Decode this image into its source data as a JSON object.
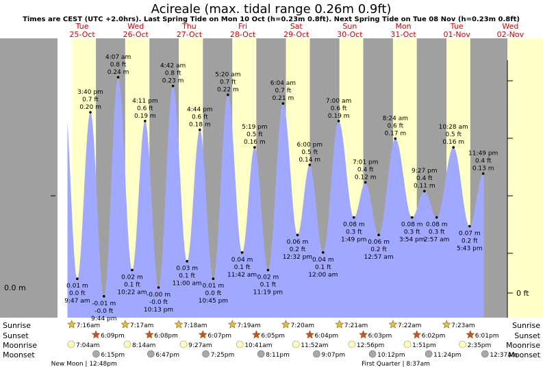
{
  "header": {
    "title": "Acireale (max. tidal range 0.26m 0.9ft)",
    "subtitle": "Times are CEST (UTC +2.0hrs). Last Spring Tide on Mon 10 Oct (h=0.23m 0.8ft). Next Spring Tide on Tue 08 Nov (h=0.23m 0.8ft)"
  },
  "axes": {
    "left_label": "0.0 m",
    "right_label": "0 ft"
  },
  "rows": {
    "sunrise": "Sunrise",
    "sunset": "Sunset",
    "moonrise": "Moonrise",
    "moonset": "Moonset"
  },
  "colors": {
    "night": "#a0a0a0",
    "day": "#ffffc8",
    "tide_fill": "#a0a8ff",
    "day_label": "#d00000",
    "sun_star": "#e0c040",
    "sunset_star": "#d05020",
    "moonrise_circle": "#ffffc0",
    "moonset_circle": "#a8a8a8"
  },
  "chart_data": {
    "type": "area",
    "title": "Acireale (max. tidal range 0.26m 0.9ft)",
    "x_range": [
      "2022-10-25 00:00",
      "2022-11-02 00:00"
    ],
    "y_unit": "m",
    "days": [
      {
        "dow": "Tue",
        "date": "25-Oct"
      },
      {
        "dow": "Wed",
        "date": "26-Oct"
      },
      {
        "dow": "Thu",
        "date": "27-Oct"
      },
      {
        "dow": "Fri",
        "date": "28-Oct"
      },
      {
        "dow": "Sat",
        "date": "29-Oct"
      },
      {
        "dow": "Sun",
        "date": "30-Oct"
      },
      {
        "dow": "Mon",
        "date": "31-Oct"
      },
      {
        "dow": "Tue",
        "date": "01-Nov"
      },
      {
        "dow": "Wed",
        "date": "02-Nov"
      }
    ],
    "tides": [
      {
        "day": 0,
        "time": "3:40 pm",
        "h_m": "0.20 m",
        "h_ft": "0.7 ft",
        "type": "high",
        "hours": 15.67,
        "m": 0.2
      },
      {
        "day": 0,
        "time": "9:47 am",
        "h_m": "0.01 m",
        "h_ft": "0.0 ft",
        "type": "low",
        "hours": 9.78,
        "m": 0.01
      },
      {
        "day": 0,
        "time": "9:44 pm",
        "h_m": "-0.01 m",
        "h_ft": "-0.0 ft",
        "type": "low",
        "hours": 21.73,
        "m": -0.01
      },
      {
        "day": 1,
        "time": "4:07 am",
        "h_m": "0.24 m",
        "h_ft": "0.8 ft",
        "type": "high",
        "hours": 4.12,
        "m": 0.24
      },
      {
        "day": 1,
        "time": "4:11 pm",
        "h_m": "0.19 m",
        "h_ft": "0.6 ft",
        "type": "high",
        "hours": 16.18,
        "m": 0.19
      },
      {
        "day": 1,
        "time": "10:22 am",
        "h_m": "0.02 m",
        "h_ft": "0.1 ft",
        "type": "low",
        "hours": 10.37,
        "m": 0.02
      },
      {
        "day": 1,
        "time": "10:13 pm",
        "h_m": "-0.00 m",
        "h_ft": "-0.0 ft",
        "type": "low",
        "hours": 22.22,
        "m": 0.0
      },
      {
        "day": 2,
        "time": "4:42 am",
        "h_m": "0.23 m",
        "h_ft": "0.8 ft",
        "type": "high",
        "hours": 4.7,
        "m": 0.23
      },
      {
        "day": 2,
        "time": "4:44 pm",
        "h_m": "0.18 m",
        "h_ft": "0.6 ft",
        "type": "high",
        "hours": 16.73,
        "m": 0.18
      },
      {
        "day": 2,
        "time": "11:00 am",
        "h_m": "0.03 m",
        "h_ft": "0.1 ft",
        "type": "low",
        "hours": 11.0,
        "m": 0.03
      },
      {
        "day": 2,
        "time": "10:45 pm",
        "h_m": "0.01 m",
        "h_ft": "0.0 ft",
        "type": "low",
        "hours": 22.75,
        "m": 0.01
      },
      {
        "day": 3,
        "time": "5:20 am",
        "h_m": "0.22 m",
        "h_ft": "0.7 ft",
        "type": "high",
        "hours": 5.33,
        "m": 0.22
      },
      {
        "day": 3,
        "time": "5:19 pm",
        "h_m": "0.16 m",
        "h_ft": "0.5 ft",
        "type": "high",
        "hours": 17.32,
        "m": 0.16
      },
      {
        "day": 3,
        "time": "11:42 am",
        "h_m": "0.04 m",
        "h_ft": "0.1 ft",
        "type": "low",
        "hours": 11.7,
        "m": 0.04
      },
      {
        "day": 3,
        "time": "11:19 pm",
        "h_m": "0.02 m",
        "h_ft": "0.1 ft",
        "type": "low",
        "hours": 23.32,
        "m": 0.02
      },
      {
        "day": 4,
        "time": "6:04 am",
        "h_m": "0.21 m",
        "h_ft": "0.7 ft",
        "type": "high",
        "hours": 6.07,
        "m": 0.21
      },
      {
        "day": 4,
        "time": "6:00 pm",
        "h_m": "0.14 m",
        "h_ft": "0.5 ft",
        "type": "high",
        "hours": 18.0,
        "m": 0.14
      },
      {
        "day": 4,
        "time": "12:32 pm",
        "h_m": "0.06 m",
        "h_ft": "0.2 ft",
        "type": "low",
        "hours": 12.53,
        "m": 0.06
      },
      {
        "day": 5,
        "time": "12:00 am",
        "h_m": "0.04 m",
        "h_ft": "0.1 ft",
        "type": "low",
        "hours": 0.0,
        "m": 0.04
      },
      {
        "day": 5,
        "time": "7:00 am",
        "h_m": "0.19 m",
        "h_ft": "0.6 ft",
        "type": "high",
        "hours": 7.0,
        "m": 0.19
      },
      {
        "day": 5,
        "time": "7:01 pm",
        "h_m": "0.12 m",
        "h_ft": "0.4 ft",
        "type": "high",
        "hours": 19.02,
        "m": 0.12
      },
      {
        "day": 5,
        "time": "1:49 pm",
        "h_m": "0.08 m",
        "h_ft": "0.3 ft",
        "type": "low",
        "hours": 13.82,
        "m": 0.08
      },
      {
        "day": 6,
        "time": "12:57 am",
        "h_m": "0.06 m",
        "h_ft": "0.2 ft",
        "type": "low",
        "hours": 0.95,
        "m": 0.06
      },
      {
        "day": 6,
        "time": "8:24 am",
        "h_m": "0.17 m",
        "h_ft": "0.6 ft",
        "type": "high",
        "hours": 8.4,
        "m": 0.17
      },
      {
        "day": 6,
        "time": "3:54 pm",
        "h_m": "0.08 m",
        "h_ft": "0.3 ft",
        "type": "low",
        "hours": 15.9,
        "m": 0.08
      },
      {
        "day": 6,
        "time": "9:27 pm",
        "h_m": "0.11 m",
        "h_ft": "0.4 ft",
        "type": "high",
        "hours": 21.45,
        "m": 0.11
      },
      {
        "day": 7,
        "time": "2:57 am",
        "h_m": "0.08 m",
        "h_ft": "0.3 ft",
        "type": "low",
        "hours": 2.95,
        "m": 0.08
      },
      {
        "day": 7,
        "time": "10:28 am",
        "h_m": "0.16 m",
        "h_ft": "0.5 ft",
        "type": "high",
        "hours": 10.47,
        "m": 0.16
      },
      {
        "day": 7,
        "time": "5:43 pm",
        "h_m": "0.07 m",
        "h_ft": "0.2 ft",
        "type": "low",
        "hours": 17.72,
        "m": 0.07
      },
      {
        "day": 7,
        "time": "11:49 pm",
        "h_m": "0.13 m",
        "h_ft": "0.4 ft",
        "type": "high",
        "hours": 23.82,
        "m": 0.13
      }
    ],
    "sun": [
      {
        "day": 0,
        "rise": "7:16am",
        "set": "6:09pm",
        "rise_h": 7.27,
        "set_h": 18.15
      },
      {
        "day": 1,
        "rise": "7:17am",
        "set": "6:08pm",
        "rise_h": 7.28,
        "set_h": 18.13
      },
      {
        "day": 2,
        "rise": "7:18am",
        "set": "6:07pm",
        "rise_h": 7.3,
        "set_h": 18.12
      },
      {
        "day": 3,
        "rise": "7:19am",
        "set": "6:05pm",
        "rise_h": 7.32,
        "set_h": 18.08
      },
      {
        "day": 4,
        "rise": "7:20am",
        "set": "6:04pm",
        "rise_h": 7.33,
        "set_h": 18.07
      },
      {
        "day": 5,
        "rise": "7:21am",
        "set": "6:03pm",
        "rise_h": 7.35,
        "set_h": 18.05
      },
      {
        "day": 6,
        "rise": "7:22am",
        "set": "6:02pm",
        "rise_h": 7.37,
        "set_h": 18.03
      },
      {
        "day": 7,
        "rise": "7:23am",
        "set": "6:01pm",
        "rise_h": 7.38,
        "set_h": 18.02
      }
    ],
    "moonrise": [
      {
        "day": 0,
        "time": "7:04am",
        "h": 7.07
      },
      {
        "day": 1,
        "time": "8:14am",
        "h": 8.23
      },
      {
        "day": 2,
        "time": "9:27am",
        "h": 9.45
      },
      {
        "day": 3,
        "time": "10:41am",
        "h": 10.68
      },
      {
        "day": 4,
        "time": "11:52am",
        "h": 11.87
      },
      {
        "day": 5,
        "time": "12:56pm",
        "h": 12.93
      },
      {
        "day": 6,
        "time": "1:51pm",
        "h": 13.85
      },
      {
        "day": 7,
        "time": "2:35pm",
        "h": 14.58
      }
    ],
    "moonset": [
      {
        "day": 0,
        "time": "6:15pm",
        "h": 18.25
      },
      {
        "day": 1,
        "time": "6:47pm",
        "h": 18.78
      },
      {
        "day": 2,
        "time": "7:25pm",
        "h": 19.42
      },
      {
        "day": 3,
        "time": "8:11pm",
        "h": 20.18
      },
      {
        "day": 4,
        "time": "9:07pm",
        "h": 21.12
      },
      {
        "day": 5,
        "time": "10:12pm",
        "h": 22.2
      },
      {
        "day": 6,
        "time": "11:24pm",
        "h": 23.4
      },
      {
        "day": 7,
        "time": "12:37am",
        "h": 24.62
      }
    ],
    "moon_phases": [
      {
        "label": "New Moon | 12:48pm",
        "day": 0,
        "h": 12.8
      },
      {
        "label": "First Quarter | 8:37am",
        "day": 6,
        "h": 8.62
      }
    ]
  }
}
